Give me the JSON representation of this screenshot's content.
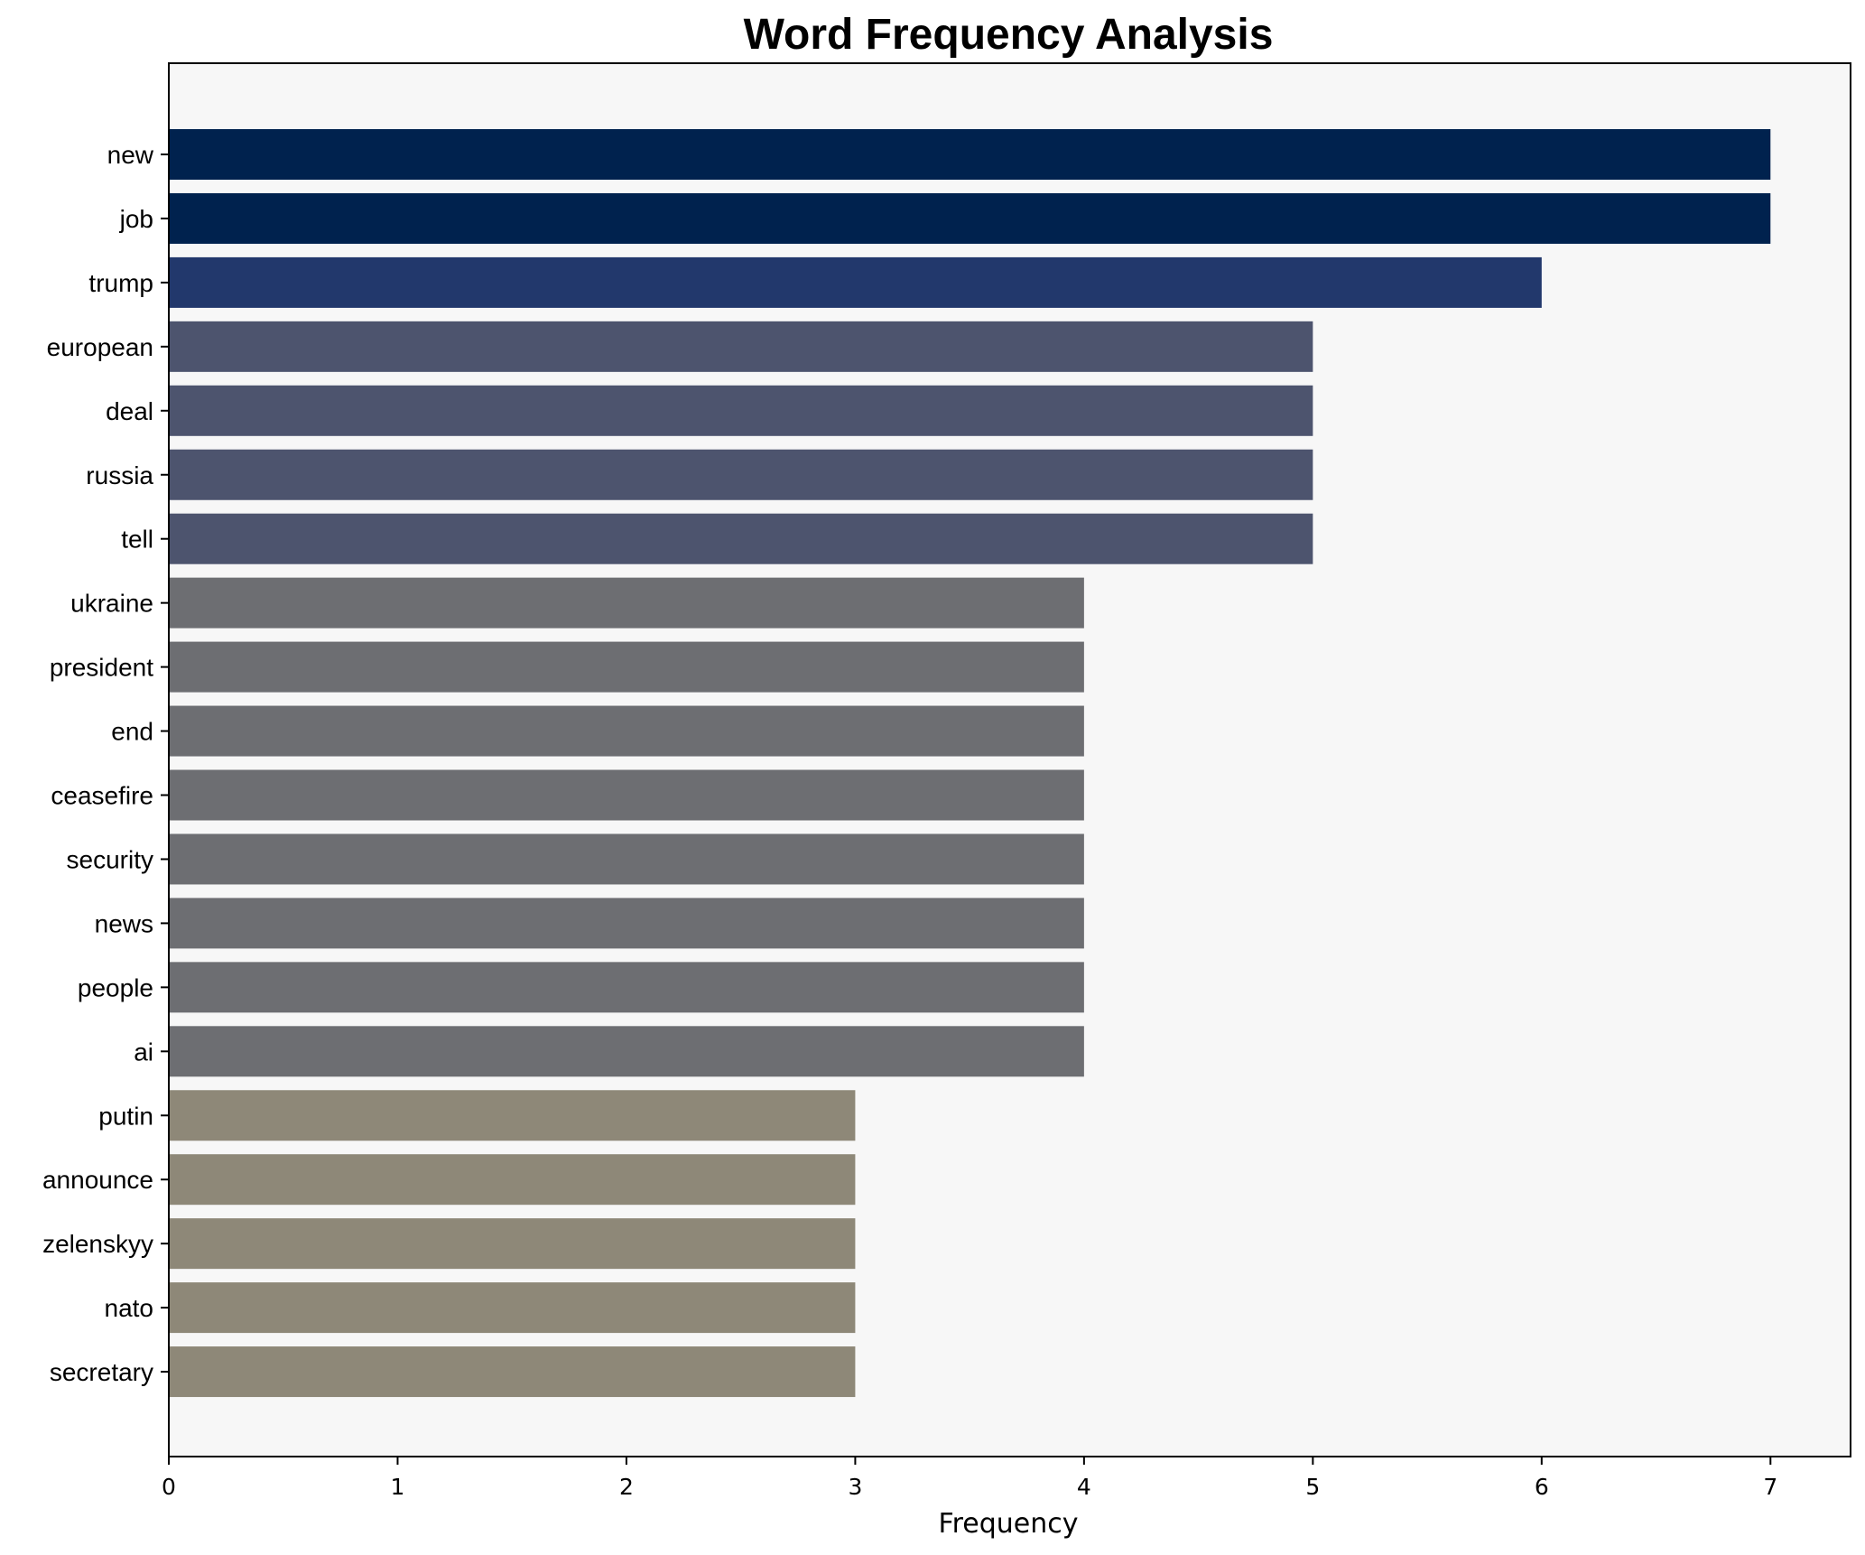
{
  "chart_data": {
    "type": "bar",
    "orientation": "horizontal",
    "title": "Word Frequency Analysis",
    "xlabel": "Frequency",
    "ylabel": "",
    "categories": [
      "new",
      "job",
      "trump",
      "european",
      "deal",
      "russia",
      "tell",
      "ukraine",
      "president",
      "end",
      "ceasefire",
      "security",
      "news",
      "people",
      "ai",
      "putin",
      "announce",
      "zelenskyy",
      "nato",
      "secretary"
    ],
    "values": [
      7,
      7,
      6,
      5,
      5,
      5,
      5,
      4,
      4,
      4,
      4,
      4,
      4,
      4,
      4,
      3,
      3,
      3,
      3,
      3
    ],
    "xlim": [
      0,
      7.35
    ],
    "xticks": [
      "0",
      "1",
      "2",
      "3",
      "4",
      "5",
      "6",
      "7"
    ],
    "grid": false,
    "colors": {
      "7": "#00224e",
      "6": "#22386c",
      "5": "#4d546e",
      "4": "#6d6e72",
      "3": "#8e8878"
    },
    "plot_background": "#f7f7f7"
  }
}
